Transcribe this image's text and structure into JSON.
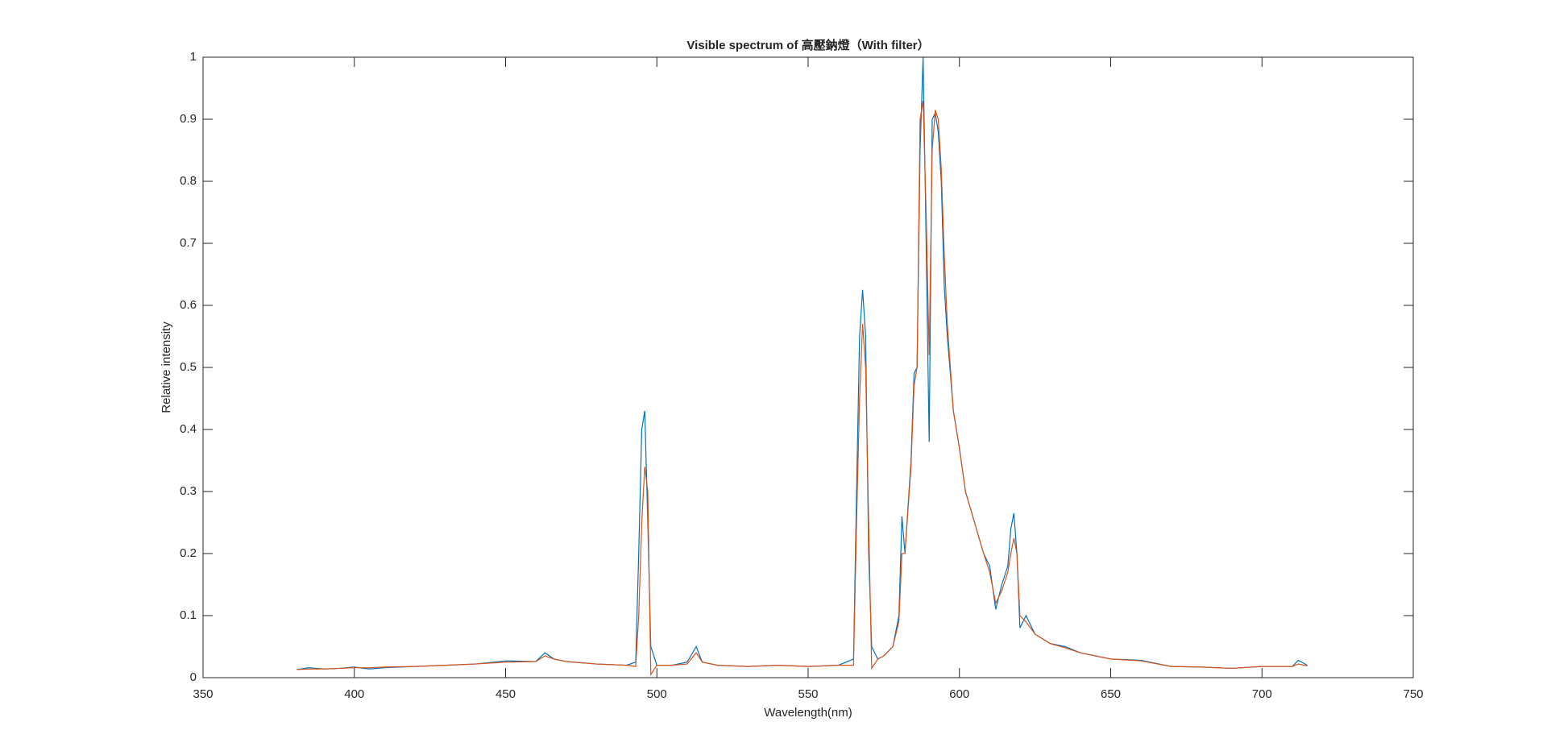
{
  "chart_data": {
    "type": "line",
    "title": "Visible spectrum of 高壓鈉燈（With filter）",
    "xlabel": "Wavelength(nm)",
    "ylabel": "Relative intensity",
    "x": [
      381,
      385,
      390,
      395,
      400,
      405,
      410,
      420,
      430,
      440,
      450,
      460,
      463,
      466,
      470,
      480,
      490,
      493,
      494,
      495,
      496,
      497,
      498,
      500,
      505,
      510,
      513,
      515,
      520,
      530,
      540,
      550,
      560,
      565,
      566,
      567,
      568,
      569,
      570,
      571,
      573,
      575,
      578,
      580,
      581,
      582,
      584,
      585,
      586,
      587,
      588,
      589,
      590,
      591,
      592,
      593,
      594,
      595,
      596,
      598,
      600,
      602,
      605,
      608,
      610,
      612,
      614,
      616,
      617,
      618,
      619,
      620,
      622,
      625,
      630,
      635,
      640,
      650,
      660,
      670,
      680,
      690,
      700,
      710,
      712,
      715
    ],
    "series": [
      {
        "color": "#0072bd",
        "values": [
          0.013,
          0.016,
          0.014,
          0.015,
          0.017,
          0.014,
          0.016,
          0.018,
          0.02,
          0.022,
          0.027,
          0.026,
          0.04,
          0.03,
          0.026,
          0.022,
          0.02,
          0.025,
          0.2,
          0.4,
          0.43,
          0.25,
          0.05,
          0.02,
          0.02,
          0.025,
          0.05,
          0.025,
          0.02,
          0.018,
          0.02,
          0.018,
          0.02,
          0.03,
          0.3,
          0.55,
          0.625,
          0.55,
          0.2,
          0.05,
          0.03,
          0.035,
          0.05,
          0.1,
          0.26,
          0.2,
          0.35,
          0.49,
          0.5,
          0.85,
          1.0,
          0.7,
          0.38,
          0.9,
          0.91,
          0.88,
          0.8,
          0.63,
          0.55,
          0.43,
          0.37,
          0.3,
          0.25,
          0.2,
          0.18,
          0.11,
          0.15,
          0.18,
          0.24,
          0.265,
          0.2,
          0.08,
          0.1,
          0.07,
          0.055,
          0.05,
          0.04,
          0.03,
          0.028,
          0.018,
          0.017,
          0.015,
          0.018,
          0.018,
          0.028,
          0.02
        ]
      },
      {
        "color": "#d95319",
        "values": [
          0.013,
          0.014,
          0.014,
          0.015,
          0.016,
          0.016,
          0.017,
          0.018,
          0.02,
          0.022,
          0.025,
          0.026,
          0.035,
          0.03,
          0.026,
          0.022,
          0.02,
          0.018,
          0.1,
          0.25,
          0.34,
          0.3,
          0.005,
          0.02,
          0.02,
          0.022,
          0.04,
          0.025,
          0.02,
          0.018,
          0.02,
          0.018,
          0.02,
          0.02,
          0.25,
          0.45,
          0.57,
          0.5,
          0.25,
          0.015,
          0.03,
          0.035,
          0.05,
          0.09,
          0.2,
          0.2,
          0.34,
          0.47,
          0.5,
          0.9,
          0.93,
          0.75,
          0.52,
          0.85,
          0.915,
          0.9,
          0.82,
          0.68,
          0.57,
          0.43,
          0.37,
          0.3,
          0.25,
          0.2,
          0.17,
          0.12,
          0.14,
          0.17,
          0.2,
          0.225,
          0.2,
          0.1,
          0.09,
          0.07,
          0.055,
          0.048,
          0.04,
          0.03,
          0.027,
          0.018,
          0.017,
          0.015,
          0.018,
          0.018,
          0.022,
          0.019
        ]
      }
    ],
    "xlim": [
      350,
      750
    ],
    "xticks": [
      350,
      400,
      450,
      500,
      550,
      600,
      650,
      700,
      750
    ],
    "ylim": [
      0,
      1
    ],
    "yticks": [
      0,
      0.1,
      0.2,
      0.3,
      0.4,
      0.5,
      0.6,
      0.7,
      0.8,
      0.9,
      1
    ]
  }
}
